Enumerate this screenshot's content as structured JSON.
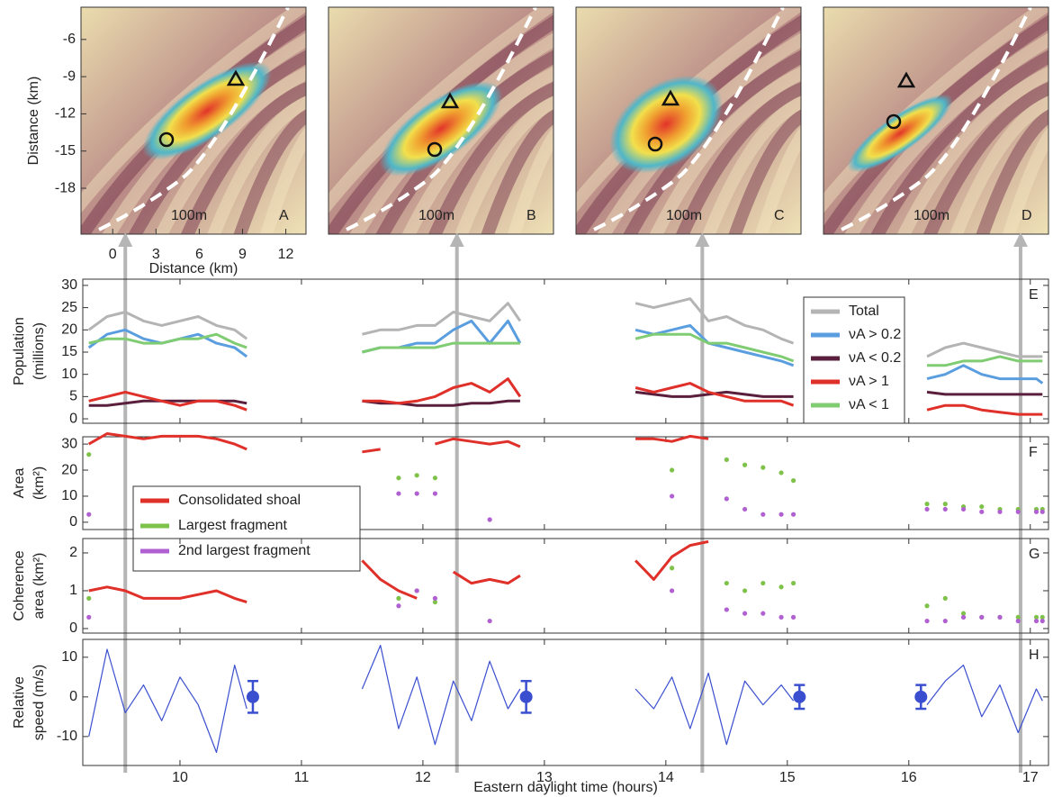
{
  "chart_data": [
    {
      "type": "image",
      "xlabel": "Distance (km)",
      "ylabel": "Distance (km)",
      "xlim": [
        -2.2,
        13.4
      ],
      "ylim": [
        -21.7,
        -3.4
      ],
      "xticks": [
        0,
        3,
        6,
        9,
        12
      ],
      "yticks": [
        -6,
        -9,
        -12,
        -15,
        -18
      ],
      "panels": [
        {
          "label": "A",
          "scale": "100m",
          "time": 9.55
        },
        {
          "label": "B",
          "scale": "100m",
          "time": 12.28
        },
        {
          "label": "C",
          "scale": "100m",
          "time": 14.3
        },
        {
          "label": "D",
          "scale": "100m",
          "time": 16.92
        }
      ]
    },
    {
      "type": "line",
      "panel": "E",
      "ylabel": [
        "Population",
        "(millions)"
      ],
      "xlim": [
        9.2,
        17.15
      ],
      "ylim": [
        -1,
        31.4
      ],
      "xticks": [
        10,
        11,
        12,
        13,
        14,
        15,
        16,
        17
      ],
      "yticks": [
        0,
        5,
        10,
        15,
        20,
        25,
        30
      ],
      "legend": "upper right",
      "x": [
        9.25,
        9.4,
        9.55,
        9.7,
        9.85,
        10.0,
        10.15,
        10.3,
        10.45,
        10.55,
        11.0,
        11.5,
        11.65,
        11.8,
        11.95,
        12.1,
        12.25,
        12.4,
        12.55,
        12.7,
        12.8,
        13.3,
        13.75,
        13.9,
        14.05,
        14.2,
        14.35,
        14.5,
        14.65,
        14.8,
        14.95,
        15.05,
        15.6,
        16.15,
        16.3,
        16.45,
        16.6,
        16.75,
        16.9,
        17.05,
        17.1
      ],
      "series": [
        {
          "name": "Total",
          "color": "#b4b4b4",
          "values": [
            20,
            23,
            24,
            22,
            21,
            22,
            23,
            21,
            20,
            18,
            null,
            19,
            20,
            20,
            21,
            21,
            24,
            23,
            22,
            26,
            22,
            null,
            26,
            25,
            26,
            27,
            22,
            23,
            21,
            20,
            18,
            17,
            null,
            14,
            16,
            17,
            16,
            15,
            14,
            14,
            14
          ]
        },
        {
          "name": "νA > 0.2",
          "color": "#5a9ee0",
          "values": [
            16,
            19,
            20,
            18,
            17,
            18,
            19,
            17,
            16,
            14,
            null,
            15,
            16,
            16,
            17,
            17,
            20,
            22,
            17,
            22,
            17,
            null,
            20,
            19,
            20,
            21,
            17,
            16,
            15,
            14,
            13,
            12,
            null,
            9,
            10,
            12,
            10,
            9,
            9,
            9,
            8
          ]
        },
        {
          "name": "νA < 0.2",
          "color": "#5a1f3c",
          "values": [
            3,
            3,
            3.5,
            4,
            4,
            4,
            4,
            4,
            4,
            3.5,
            null,
            4,
            3.5,
            3.5,
            3,
            3,
            3,
            3.5,
            3.5,
            4,
            4,
            null,
            6,
            5.5,
            5,
            5,
            5.5,
            6,
            5.5,
            5,
            5,
            5,
            null,
            6,
            5.5,
            5.5,
            5.5,
            5.5,
            5.5,
            5.5,
            5.5
          ]
        },
        {
          "name": "νA > 1",
          "color": "#e0302a",
          "values": [
            4,
            5,
            6,
            5,
            4,
            3,
            4,
            4,
            3,
            2,
            null,
            4,
            4,
            3.5,
            4,
            5,
            7,
            8,
            6,
            9,
            5,
            null,
            7,
            6,
            7,
            8,
            6,
            5,
            4,
            4,
            4,
            3,
            null,
            2,
            3,
            3,
            2,
            1.5,
            1,
            1,
            1
          ]
        },
        {
          "name": "νA < 1",
          "color": "#80cc72",
          "values": [
            17,
            18,
            18,
            17,
            17,
            18,
            18,
            19,
            17,
            16,
            null,
            15,
            16,
            16,
            16,
            16,
            17,
            17,
            17,
            17,
            17,
            null,
            18,
            19,
            19,
            19,
            17,
            17,
            16,
            15,
            14,
            13,
            null,
            12,
            12,
            13,
            13,
            14,
            13,
            13,
            13
          ]
        }
      ]
    },
    {
      "type": "dotline",
      "panel": "F",
      "ylabel": [
        "Area",
        "(km²)"
      ],
      "xlim": [
        9.2,
        17.15
      ],
      "ylim": [
        -2.8,
        32.8
      ],
      "xticks": [
        10,
        11,
        12,
        13,
        14,
        15,
        16,
        17
      ],
      "yticks": [
        0,
        10,
        20,
        30
      ],
      "legend": "lower left",
      "x": [
        9.25,
        9.4,
        9.55,
        9.7,
        9.85,
        10.0,
        10.15,
        10.3,
        10.45,
        10.55,
        11.0,
        11.5,
        11.65,
        11.8,
        11.95,
        12.1,
        12.25,
        12.4,
        12.55,
        12.7,
        12.8,
        13.3,
        13.75,
        13.9,
        14.05,
        14.2,
        14.35,
        14.5,
        14.65,
        14.8,
        14.95,
        15.05,
        15.6,
        16.15,
        16.3,
        16.45,
        16.6,
        16.75,
        16.9,
        17.05,
        17.1
      ],
      "series": [
        {
          "name": "Consolidated shoal",
          "color": "#e0302a",
          "style": "line",
          "values": [
            30,
            34,
            33,
            32,
            33,
            33,
            33,
            32,
            30,
            28,
            null,
            27,
            28,
            null,
            null,
            30,
            32,
            31,
            30,
            31,
            29,
            null,
            32,
            32,
            31,
            33,
            32,
            null,
            null,
            null,
            null,
            null,
            null,
            null,
            null,
            null,
            null,
            null,
            null,
            null,
            null
          ]
        },
        {
          "name": "Largest fragment",
          "color": "#7ec24a",
          "style": "dots",
          "values": [
            26,
            null,
            null,
            null,
            null,
            null,
            null,
            null,
            null,
            null,
            null,
            null,
            null,
            17,
            18,
            17,
            null,
            null,
            null,
            null,
            null,
            null,
            null,
            null,
            20,
            null,
            null,
            24,
            22,
            21,
            19,
            16,
            null,
            7,
            7,
            6,
            6,
            5,
            5,
            5,
            5
          ]
        },
        {
          "name": "2nd largest fragment",
          "color": "#b060d0",
          "style": "dots",
          "values": [
            3,
            null,
            null,
            null,
            null,
            null,
            null,
            null,
            null,
            null,
            null,
            null,
            null,
            11,
            11,
            11,
            null,
            null,
            1,
            null,
            null,
            null,
            null,
            null,
            10,
            null,
            null,
            9,
            5,
            3,
            3,
            3,
            null,
            5,
            5,
            5,
            4,
            4,
            4,
            4,
            4
          ]
        }
      ]
    },
    {
      "type": "dotline",
      "panel": "G",
      "ylabel": [
        "Coherence",
        "area (km²)"
      ],
      "xlim": [
        9.2,
        17.15
      ],
      "ylim": [
        -0.12,
        2.38
      ],
      "xticks": [
        10,
        11,
        12,
        13,
        14,
        15,
        16,
        17
      ],
      "yticks": [
        0,
        1,
        2
      ],
      "x": [
        9.25,
        9.4,
        9.55,
        9.7,
        9.85,
        10.0,
        10.15,
        10.3,
        10.45,
        10.55,
        11.0,
        11.5,
        11.65,
        11.8,
        11.95,
        12.1,
        12.25,
        12.4,
        12.55,
        12.7,
        12.8,
        13.3,
        13.75,
        13.9,
        14.05,
        14.2,
        14.35,
        14.5,
        14.65,
        14.8,
        14.95,
        15.05,
        15.6,
        16.15,
        16.3,
        16.45,
        16.6,
        16.75,
        16.9,
        17.05,
        17.1
      ],
      "series": [
        {
          "color": "#e0302a",
          "style": "line",
          "values": [
            1,
            1.1,
            1,
            0.8,
            0.8,
            0.8,
            0.9,
            1,
            0.8,
            0.7,
            null,
            1.8,
            1.3,
            1,
            0.8,
            null,
            1.5,
            1.2,
            1.3,
            1.2,
            1.4,
            null,
            1.8,
            1.3,
            1.9,
            2.2,
            2.3,
            null,
            null,
            null,
            null,
            null,
            null,
            null,
            null,
            null,
            null,
            null,
            null,
            null,
            null
          ]
        },
        {
          "color": "#7ec24a",
          "style": "dots",
          "values": [
            0.8,
            null,
            null,
            null,
            null,
            null,
            null,
            null,
            null,
            null,
            null,
            null,
            null,
            0.8,
            1,
            0.7,
            null,
            null,
            null,
            null,
            null,
            null,
            null,
            null,
            1.6,
            null,
            null,
            1.2,
            1,
            1.2,
            1.1,
            1.2,
            null,
            0.6,
            0.8,
            0.4,
            0.3,
            0.3,
            0.3,
            0.3,
            0.3
          ]
        },
        {
          "color": "#b060d0",
          "style": "dots",
          "values": [
            0.3,
            null,
            null,
            null,
            null,
            null,
            null,
            null,
            null,
            null,
            null,
            null,
            null,
            0.6,
            1,
            0.8,
            null,
            null,
            0.2,
            null,
            null,
            null,
            null,
            null,
            1,
            null,
            null,
            0.5,
            0.4,
            0.4,
            0.3,
            0.3,
            null,
            0.2,
            0.2,
            0.3,
            0.3,
            0.3,
            0.2,
            0.2,
            0.2
          ]
        }
      ]
    },
    {
      "type": "line",
      "panel": "H",
      "ylabel": [
        "Relative",
        "speed (m/s)"
      ],
      "xlabel": "Eastern daylight time (hours)",
      "xlim": [
        9.2,
        17.15
      ],
      "ylim": [
        -17.3,
        14.5
      ],
      "xticks": [
        10,
        11,
        12,
        13,
        14,
        15,
        16,
        17
      ],
      "yticks": [
        -10,
        0,
        10
      ],
      "x": [
        9.25,
        9.4,
        9.55,
        9.7,
        9.85,
        10.0,
        10.15,
        10.3,
        10.45,
        10.55,
        11.0,
        11.5,
        11.65,
        11.8,
        11.95,
        12.1,
        12.25,
        12.4,
        12.55,
        12.7,
        12.8,
        13.3,
        13.75,
        13.9,
        14.05,
        14.2,
        14.35,
        14.5,
        14.65,
        14.8,
        14.95,
        15.05,
        15.6,
        16.15,
        16.3,
        16.45,
        16.6,
        16.75,
        16.9,
        17.05,
        17.1
      ],
      "series": [
        {
          "color": "#3a4fcf",
          "values": [
            -10,
            12,
            -4,
            3,
            -6,
            5,
            -2,
            -14,
            8,
            -3,
            null,
            2,
            13,
            -8,
            5,
            -12,
            4,
            -6,
            9,
            -3,
            2,
            null,
            2,
            -3,
            5,
            -8,
            6,
            -12,
            4,
            -2,
            3,
            -1,
            null,
            -2,
            4,
            8,
            -5,
            3,
            -9,
            2,
            -1
          ]
        }
      ],
      "error_bars": {
        "color": "#3a4fcf",
        "x": [
          10.6,
          12.85,
          15.1,
          16.1
        ],
        "values": [
          0,
          0,
          0,
          0
        ],
        "errors": [
          4,
          4,
          3,
          3
        ]
      }
    }
  ]
}
